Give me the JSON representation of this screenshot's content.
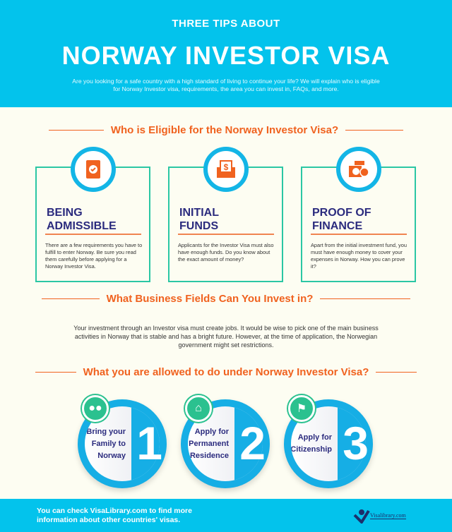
{
  "header": {
    "subtitle": "THREE TIPS ABOUT",
    "title": "NORWAY INVESTOR VISA",
    "intro": "Are you looking for a safe country with a high standard of living to continue your life? We will explain who is eligible for Norway Investor visa, requirements, the area you can invest in, FAQs, and more."
  },
  "section1": {
    "heading": "Who is Eligible for the Norway Investor Visa?",
    "cards": [
      {
        "icon": "document-check-icon",
        "title1": "BEING",
        "title2": "ADMISSIBLE",
        "text": "There are a few requirements you have to fulfill to enter Norway. Be sure you read them carefully before applying for a Norway Investor Visa."
      },
      {
        "icon": "money-envelope-icon",
        "title1": "INITIAL",
        "title2": "FUNDS",
        "text": "Applicants for the Investor Visa must also have enough funds. Do you know about the exact amount of money?"
      },
      {
        "icon": "coins-check-icon",
        "title1": "PROOF OF",
        "title2": "FINANCE",
        "text": "Apart from the initial investment fund, you must have enough money to cover your expenses in Norway. How you can prove it?"
      }
    ]
  },
  "section2": {
    "heading": "What Business Fields Can You Invest in?",
    "text": "Your investment through an Investor visa must create jobs. It would be wise to pick one of the main business activities in Norway that is stable and has a bright future. However, at the time of application, the Norwegian government might set restrictions."
  },
  "section3": {
    "heading": "What you are allowed to do under Norway Investor Visa?",
    "items": [
      {
        "icon": "family-icon",
        "label": "Bring your Family to Norway",
        "number": "1"
      },
      {
        "icon": "home-pin-icon",
        "label": "Apply for Permanent Residence",
        "number": "2"
      },
      {
        "icon": "flag-icon",
        "label": "Apply for Citizenship",
        "number": "3"
      }
    ]
  },
  "footer": {
    "text": "You can check VisaLibrary.com to find more information about other countries' visas.",
    "logo": "Visalibrary.com"
  },
  "colors": {
    "blue": "#03c3ec",
    "orange": "#f0621f",
    "navy": "#2b2b7e",
    "green": "#2bc7a4"
  }
}
